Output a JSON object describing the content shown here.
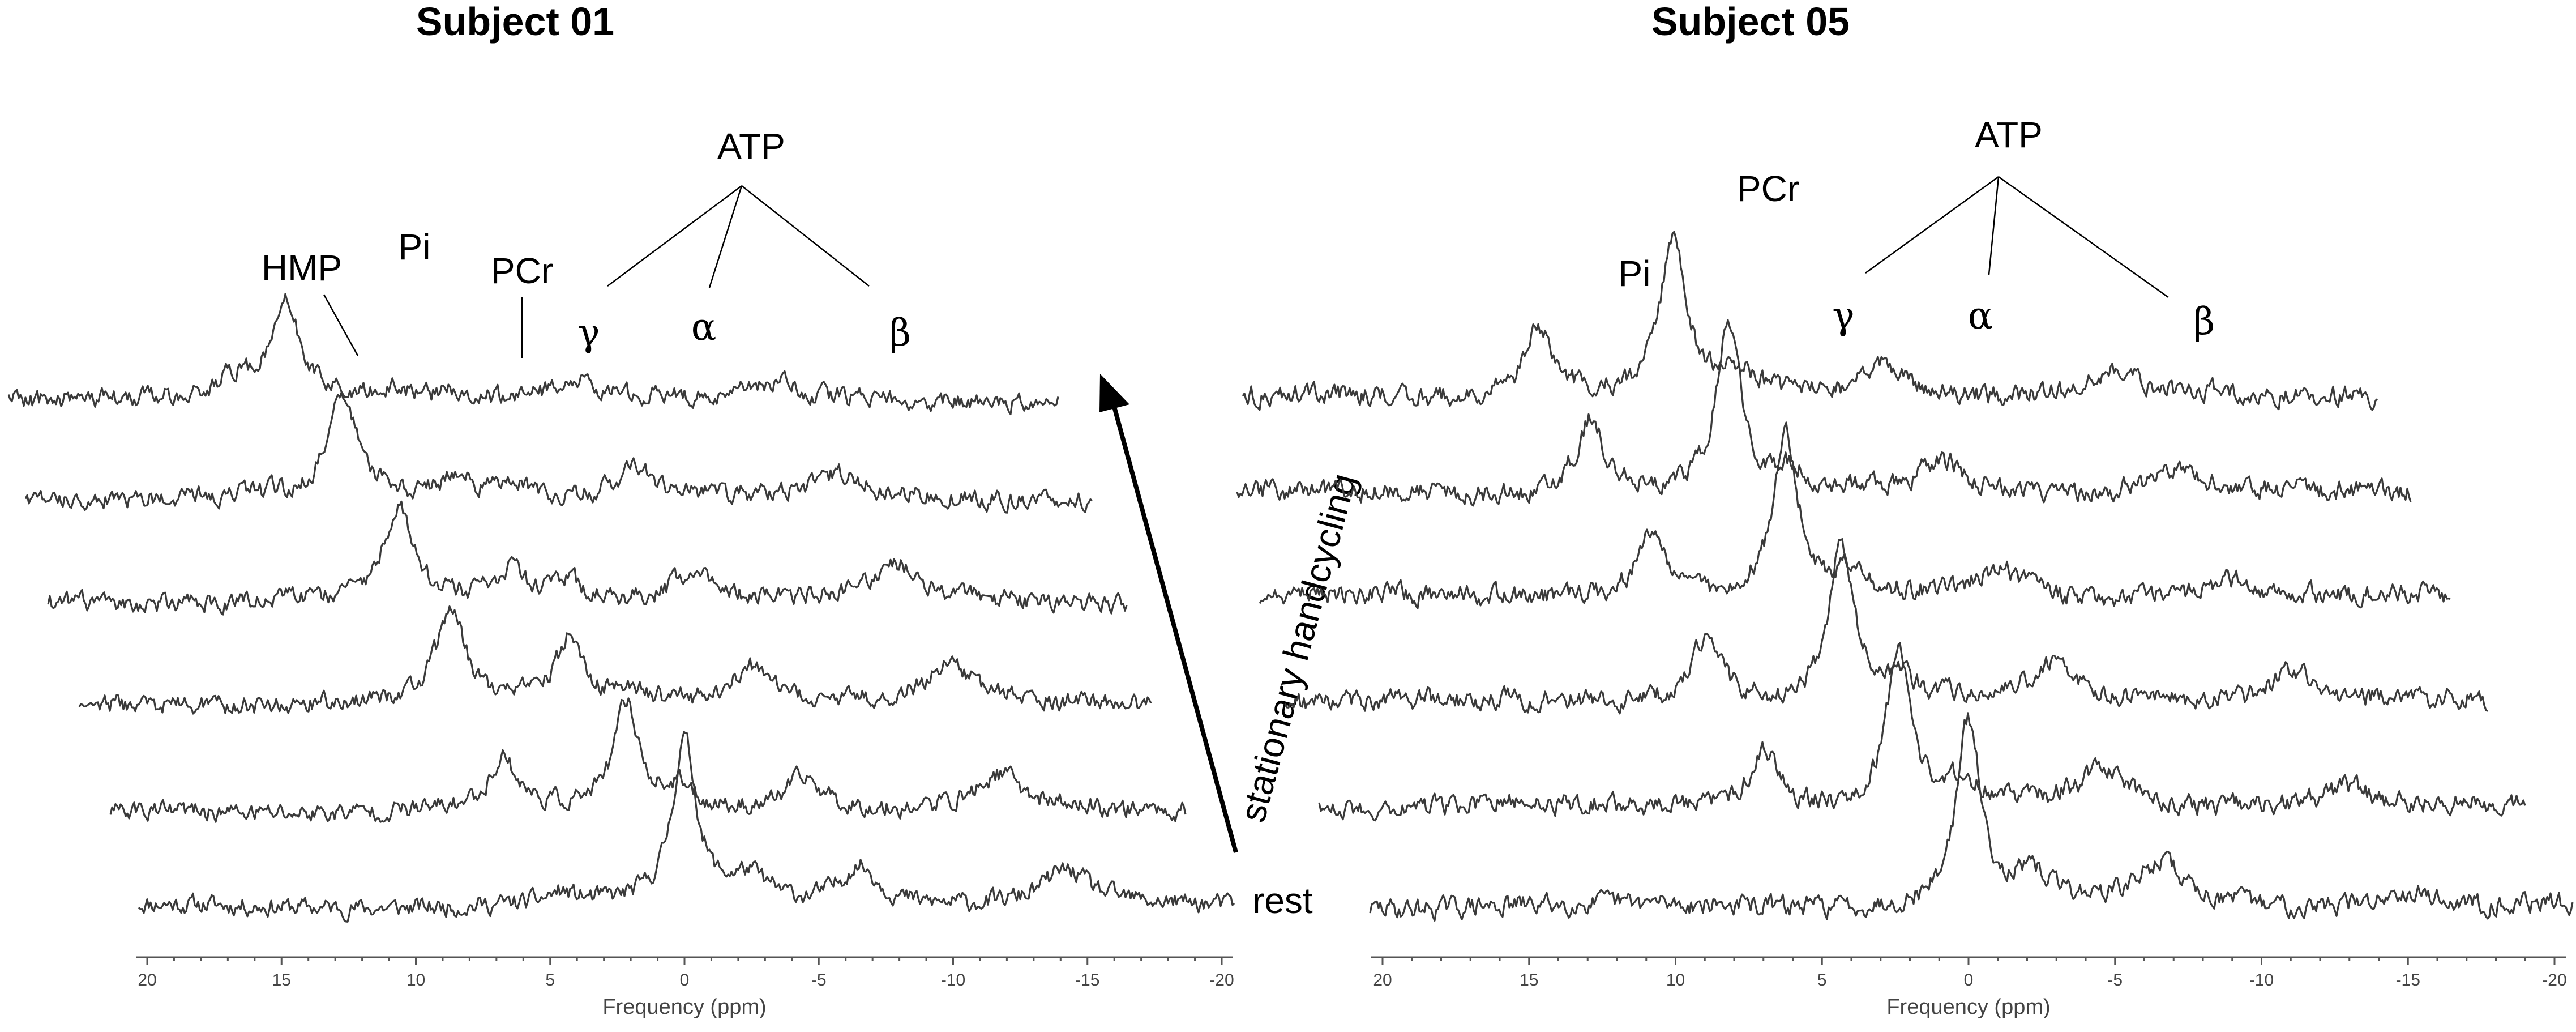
{
  "chart_data": [
    {
      "type": "line",
      "title": "Subject 01",
      "xlabel": "Frequency (ppm)",
      "ylabel": "",
      "xlim": [
        20,
        -20
      ],
      "xticks": [
        "20",
        "15",
        "10",
        "5",
        "0",
        "-5",
        "-10",
        "-15",
        "-20"
      ],
      "xtick_values": [
        20,
        15,
        10,
        5,
        0,
        -5,
        -10,
        -15,
        -20
      ],
      "series": [
        {
          "peaks": [
            {
              "x": 0.0,
              "h": 0.95,
              "w": 0.55
            },
            {
              "x": 4.6,
              "h": 0.06,
              "w": 0.6
            },
            {
              "x": -2.4,
              "h": 0.16,
              "w": 0.9
            },
            {
              "x": -6.5,
              "h": 0.24,
              "w": 0.9
            },
            {
              "x": -14.2,
              "h": 0.2,
              "w": 1.0
            }
          ]
        },
        {
          "peaks": [
            {
              "x": 5.8,
              "h": 0.3,
              "w": 0.6
            },
            {
              "x": 1.2,
              "h": 0.62,
              "w": 0.55
            },
            {
              "x": -0.8,
              "h": 0.12,
              "w": 0.7
            },
            {
              "x": -5.4,
              "h": 0.2,
              "w": 0.9
            },
            {
              "x": -12.7,
              "h": 0.2,
              "w": 1.0
            }
          ]
        },
        {
          "peaks": [
            {
              "x": 6.8,
              "h": 0.55,
              "w": 0.6
            },
            {
              "x": 2.4,
              "h": 0.38,
              "w": 0.55
            },
            {
              "x": 0.2,
              "h": 0.1,
              "w": 0.7
            },
            {
              "x": -4.3,
              "h": 0.22,
              "w": 0.9
            },
            {
              "x": -11.8,
              "h": 0.22,
              "w": 1.0
            }
          ]
        },
        {
          "peaks": [
            {
              "x": 7.8,
              "h": 0.55,
              "w": 0.65
            },
            {
              "x": 3.6,
              "h": 0.17,
              "w": 0.6
            },
            {
              "x": 1.5,
              "h": 0.12,
              "w": 0.7
            },
            {
              "x": -3.2,
              "h": 0.2,
              "w": 0.9
            },
            {
              "x": -10.8,
              "h": 0.2,
              "w": 1.0
            }
          ]
        },
        {
          "peaks": [
            {
              "x": 8.9,
              "h": 0.6,
              "w": 0.65
            },
            {
              "x": 4.7,
              "h": 0.14,
              "w": 0.6
            },
            {
              "x": 2.6,
              "h": 0.1,
              "w": 0.7
            },
            {
              "x": -2.0,
              "h": 0.18,
              "w": 0.9
            },
            {
              "x": -9.6,
              "h": 0.13,
              "w": 1.0
            }
          ]
        },
        {
          "peaks": [
            {
              "x": 10.1,
              "h": 0.55,
              "w": 0.65
            },
            {
              "x": 12.0,
              "h": 0.1,
              "w": 0.7
            },
            {
              "x": 5.9,
              "h": 0.06,
              "w": 0.6
            },
            {
              "x": 3.7,
              "h": 0.06,
              "w": 0.7
            },
            {
              "x": -0.6,
              "h": 0.12,
              "w": 0.9
            },
            {
              "x": -8.2,
              "h": 0.08,
              "w": 1.0
            }
          ]
        }
      ],
      "annotations": [
        "HMP",
        "Pi",
        "PCr",
        "γ",
        "α",
        "β",
        "ATP"
      ],
      "side_labels": [
        "rest",
        "stationary handcycling"
      ]
    },
    {
      "type": "line",
      "title": "Subject 05",
      "xlabel": "Frequency (ppm)",
      "ylabel": "",
      "xlim": [
        20,
        -20
      ],
      "xticks": [
        "20",
        "15",
        "10",
        "5",
        "0",
        "-5",
        "-10",
        "-15",
        "-20"
      ],
      "xtick_values": [
        20,
        15,
        10,
        5,
        0,
        -5,
        -10,
        -15,
        -20
      ],
      "series": [
        {
          "peaks": [
            {
              "x": 0.0,
              "h": 0.98,
              "w": 0.5
            },
            {
              "x": -2.2,
              "h": 0.14,
              "w": 0.9
            },
            {
              "x": -6.6,
              "h": 0.22,
              "w": 0.9
            },
            {
              "x": -15.0,
              "h": 0.1,
              "w": 1.0
            }
          ]
        },
        {
          "peaks": [
            {
              "x": 6.3,
              "h": 0.32,
              "w": 0.6
            },
            {
              "x": 1.7,
              "h": 0.85,
              "w": 0.5
            },
            {
              "x": -0.5,
              "h": 0.12,
              "w": 0.7
            },
            {
              "x": -5.3,
              "h": 0.2,
              "w": 0.9
            },
            {
              "x": -13.6,
              "h": 0.12,
              "w": 1.0
            }
          ]
        },
        {
          "peaks": [
            {
              "x": 7.6,
              "h": 0.35,
              "w": 0.6
            },
            {
              "x": 3.0,
              "h": 0.85,
              "w": 0.5
            },
            {
              "x": 1.0,
              "h": 0.1,
              "w": 0.7
            },
            {
              "x": -4.3,
              "h": 0.22,
              "w": 0.9
            },
            {
              "x": -12.4,
              "h": 0.16,
              "w": 1.0
            }
          ]
        },
        {
          "peaks": [
            {
              "x": 8.8,
              "h": 0.35,
              "w": 0.6
            },
            {
              "x": 4.2,
              "h": 0.85,
              "w": 0.5
            },
            {
              "x": 2.1,
              "h": 0.1,
              "w": 0.7
            },
            {
              "x": -3.1,
              "h": 0.16,
              "w": 0.9
            },
            {
              "x": -10.8,
              "h": 0.1,
              "w": 1.0
            }
          ]
        },
        {
          "peaks": [
            {
              "x": 10.2,
              "h": 0.4,
              "w": 0.6
            },
            {
              "x": 5.5,
              "h": 0.9,
              "w": 0.5
            },
            {
              "x": 3.4,
              "h": 0.1,
              "w": 0.7
            },
            {
              "x": -1.8,
              "h": 0.18,
              "w": 0.9
            },
            {
              "x": -9.6,
              "h": 0.14,
              "w": 1.0
            }
          ]
        },
        {
          "peaks": [
            {
              "x": 11.3,
              "h": 0.38,
              "w": 0.55
            },
            {
              "x": 6.7,
              "h": 0.85,
              "w": 0.5
            },
            {
              "x": 4.6,
              "h": 0.12,
              "w": 0.7
            },
            {
              "x": -0.5,
              "h": 0.16,
              "w": 0.9
            },
            {
              "x": -8.3,
              "h": 0.13,
              "w": 1.0
            }
          ]
        }
      ],
      "annotations": [
        "Pi",
        "PCr",
        "γ",
        "α",
        "β",
        "ATP"
      ]
    }
  ]
}
